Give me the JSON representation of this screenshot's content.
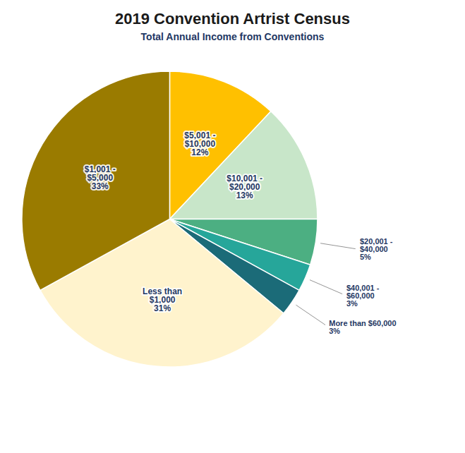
{
  "chart_data": {
    "type": "pie",
    "title": "2019 Convention Artrist Census",
    "subtitle": "Total Annual Income from Conventions",
    "categories": [
      "$5,001 -\n$10,000",
      "$10,001 -\n$20,000",
      "$20,001 -\n$40,000",
      "$40,001 -\n$60,000",
      "More than $60,000",
      "Less than\n$1,000",
      "$1,001 -\n$5,000"
    ],
    "values": [
      12,
      13,
      5,
      3,
      3,
      31,
      33
    ],
    "value_labels": [
      "12%",
      "13%",
      "5%",
      "3%",
      "3%",
      "31%",
      "33%"
    ],
    "colors": [
      "#FFC000",
      "#C8E6C9",
      "#4CAF82",
      "#26A69A",
      "#1B6B78",
      "#FFF3CD",
      "#9A7B00"
    ],
    "data_labels": true
  }
}
